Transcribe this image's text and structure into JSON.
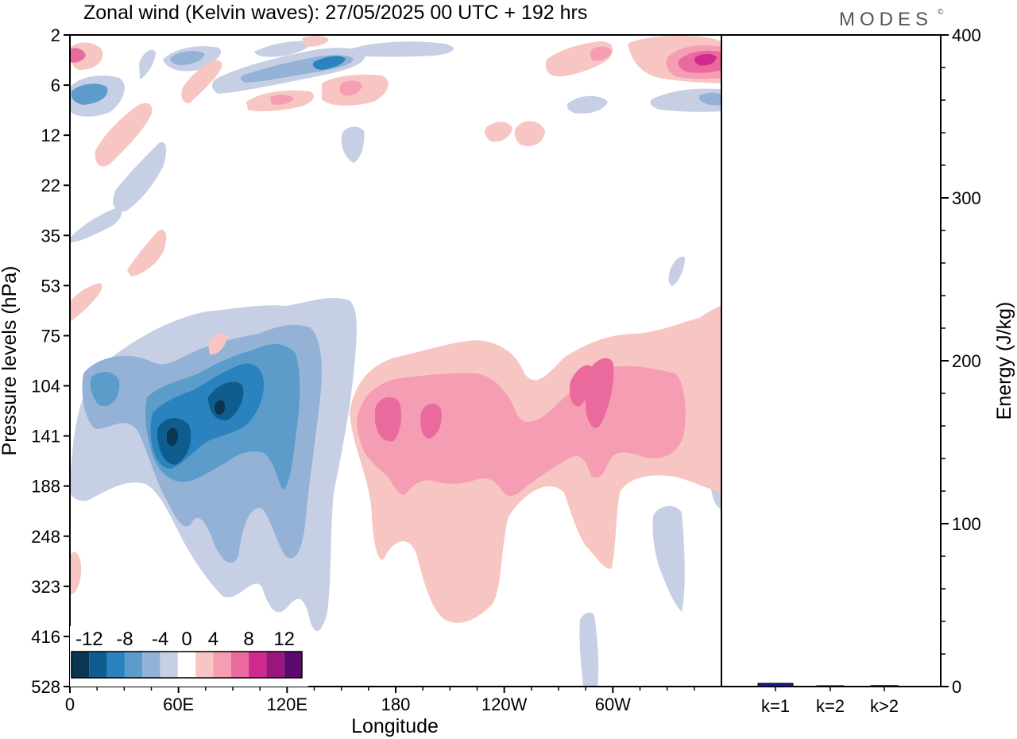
{
  "title": "Zonal wind (Kelvin waves):  27/05/2025  00 UTC  + 192 hrs",
  "brand": "MODES",
  "brand_mark": "©",
  "chart_data": [
    {
      "type": "heatmap",
      "xlabel": "Longitude",
      "ylabel": "Pressure levels (hPa)",
      "x_ticks": [
        "0",
        "60E",
        "120E",
        "180",
        "120W",
        "60W"
      ],
      "x_tick_values": [
        0,
        60,
        120,
        180,
        240,
        300
      ],
      "xlim": [
        0,
        360
      ],
      "y_ticks": [
        "2",
        "6",
        "12",
        "22",
        "35",
        "53",
        "75",
        "104",
        "141",
        "188",
        "248",
        "323",
        "416",
        "528"
      ],
      "y_scale": "pressure levels (top 2 hPa, bottom 528 hPa)",
      "colorbar": {
        "labels": [
          "-12",
          "-8",
          "-4",
          "0",
          "4",
          "8",
          "12"
        ],
        "levels": [
          -14,
          -12,
          -10,
          -8,
          -6,
          -4,
          -2,
          2,
          4,
          6,
          8,
          10,
          12,
          14
        ],
        "colors": [
          "#0b3550",
          "#0f5d8e",
          "#2a83bf",
          "#5b9ccb",
          "#93b2d6",
          "#c7cfe5",
          "#ffffff",
          "#f7c6c2",
          "#f59db3",
          "#ea6a9e",
          "#cf2b8c",
          "#99167d",
          "#5c0a6e"
        ]
      },
      "features": [
        {
          "lon": 88,
          "p": 141,
          "value": -12,
          "label": "deep negative core"
        },
        {
          "lon": 58,
          "p": 141,
          "value": -12,
          "label": "negative core"
        },
        {
          "lon": 178,
          "p": 141,
          "value": 8,
          "label": "positive core"
        },
        {
          "lon": 200,
          "p": 141,
          "value": 8,
          "label": "positive core"
        },
        {
          "lon": 295,
          "p": 130,
          "value": 8,
          "label": "positive core"
        },
        {
          "lon": 352,
          "p": 4,
          "value": 10,
          "label": "upper positive core"
        },
        {
          "lon": 140,
          "p": 4,
          "value": -10,
          "label": "upper negative core"
        }
      ]
    },
    {
      "type": "bar",
      "ylabel": "Energy (J/kg)",
      "categories": [
        "k=1",
        "k=2",
        "k>2"
      ],
      "values": [
        2,
        0.5,
        0.6
      ],
      "ylim": [
        0,
        400
      ],
      "y_ticks": [
        "0",
        "100",
        "200",
        "300",
        "400"
      ],
      "bar_color": "#1a1a8c"
    }
  ]
}
